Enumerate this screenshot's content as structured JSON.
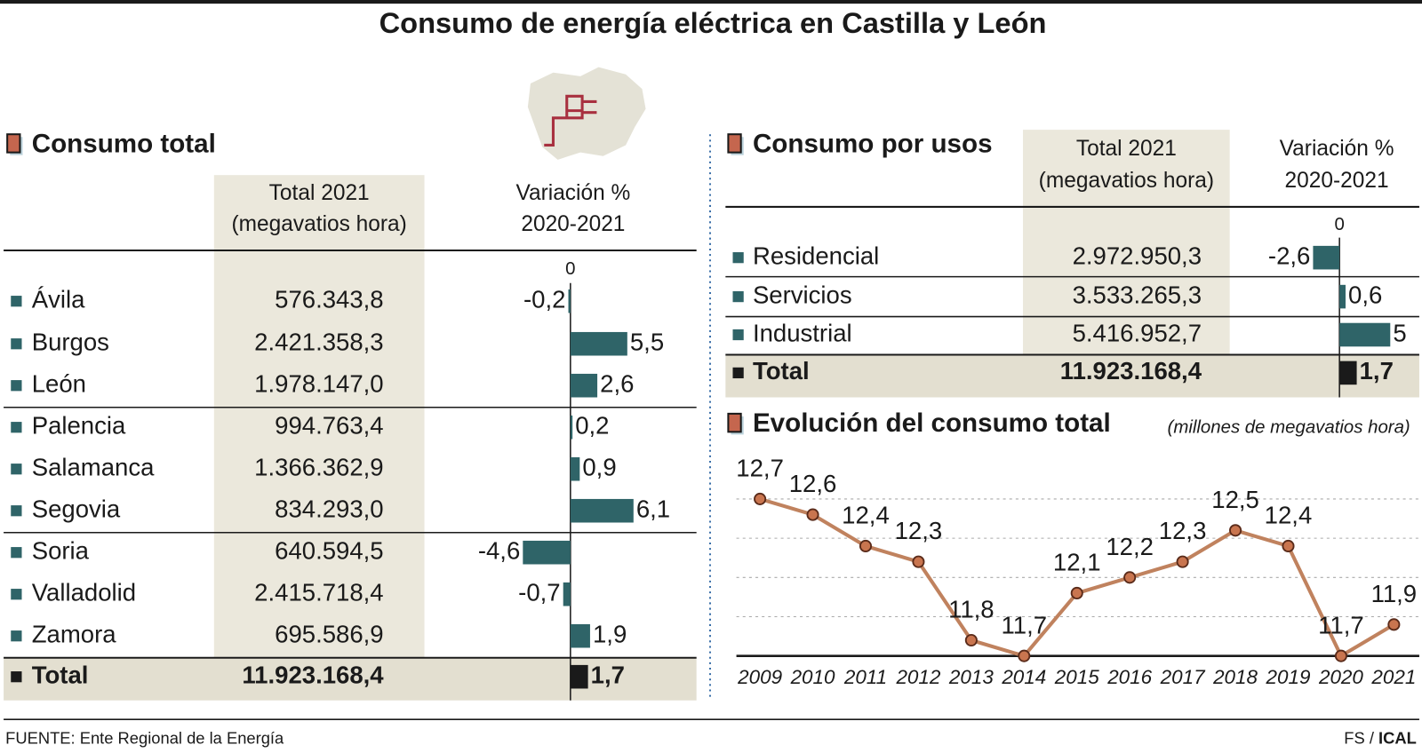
{
  "title": "Consumo de energía eléctrica en Castilla y León",
  "source": "FUENTE: Ente Regional de la Energía",
  "credit_author": "FS /",
  "credit_agency": "ICAL",
  "chart_data": [
    {
      "type": "bar",
      "orientation": "horizontal",
      "title": "Consumo total",
      "columns": [
        [
          "Total 2021",
          "(megavatios hora)"
        ],
        [
          "Variación %",
          "2020-2021"
        ]
      ],
      "categories": [
        "Ávila",
        "Burgos",
        "León",
        "Palencia",
        "Salamanca",
        "Segovia",
        "Soria",
        "Valladolid",
        "Zamora",
        "Total"
      ],
      "totals": [
        "576.343,8",
        "2.421.358,3",
        "1.978.147,0",
        "994.763,4",
        "1.366.362,9",
        "834.293,0",
        "640.594,5",
        "2.415.718,4",
        "695.586,9",
        "11.923.168,4"
      ],
      "values": [
        -0.2,
        5.5,
        2.6,
        0.2,
        0.9,
        6.1,
        -4.6,
        -0.7,
        1.9,
        1.7
      ],
      "value_labels": [
        "-0,2",
        "5,5",
        "2,6",
        "0,2",
        "0,9",
        "6,1",
        "-4,6",
        "-0,7",
        "1,9",
        "1,7"
      ],
      "xlim": [
        -5,
        7
      ],
      "xticks": [
        0
      ],
      "color": "#2f6468",
      "total_color": "#1a1a1a"
    },
    {
      "type": "bar",
      "orientation": "horizontal",
      "title": "Consumo por usos",
      "columns": [
        [
          "Total 2021",
          "(megavatios hora)"
        ],
        [
          "Variación %",
          "2020-2021"
        ]
      ],
      "categories": [
        "Residencial",
        "Servicios",
        "Industrial",
        "Total"
      ],
      "totals": [
        "2.972.950,3",
        "3.533.265,3",
        "5.416.952,7",
        "11.923.168,4"
      ],
      "values": [
        -2.6,
        0.6,
        5,
        1.7
      ],
      "value_labels": [
        "-2,6",
        "0,6",
        "5",
        "1,7"
      ],
      "xlim": [
        -3,
        8
      ],
      "xticks": [
        0
      ],
      "color": "#2f6468",
      "total_color": "#1a1a1a"
    },
    {
      "type": "line",
      "title": "Evolución del consumo total",
      "subtitle": "(millones de megavatios hora)",
      "categories": [
        "2009",
        "2010",
        "2011",
        "2012",
        "2013",
        "2014",
        "2015",
        "2016",
        "2017",
        "2018",
        "2019",
        "2020",
        "2021"
      ],
      "values": [
        12.7,
        12.6,
        12.4,
        12.3,
        11.8,
        11.7,
        12.1,
        12.2,
        12.3,
        12.5,
        12.4,
        11.7,
        11.9
      ],
      "value_labels": [
        "12,7",
        "12,6",
        "12,4",
        "12,3",
        "11,8",
        "11,7",
        "12,1",
        "12,2",
        "12,3",
        "12,5",
        "12,4",
        "11,7",
        "11,9"
      ],
      "ylim": [
        11.7,
        12.7
      ],
      "yticks": [
        11.7,
        11.95,
        12.2,
        12.45,
        12.7
      ],
      "grid": true,
      "color": "#c0825e",
      "marker_color": "#c9754f"
    }
  ]
}
